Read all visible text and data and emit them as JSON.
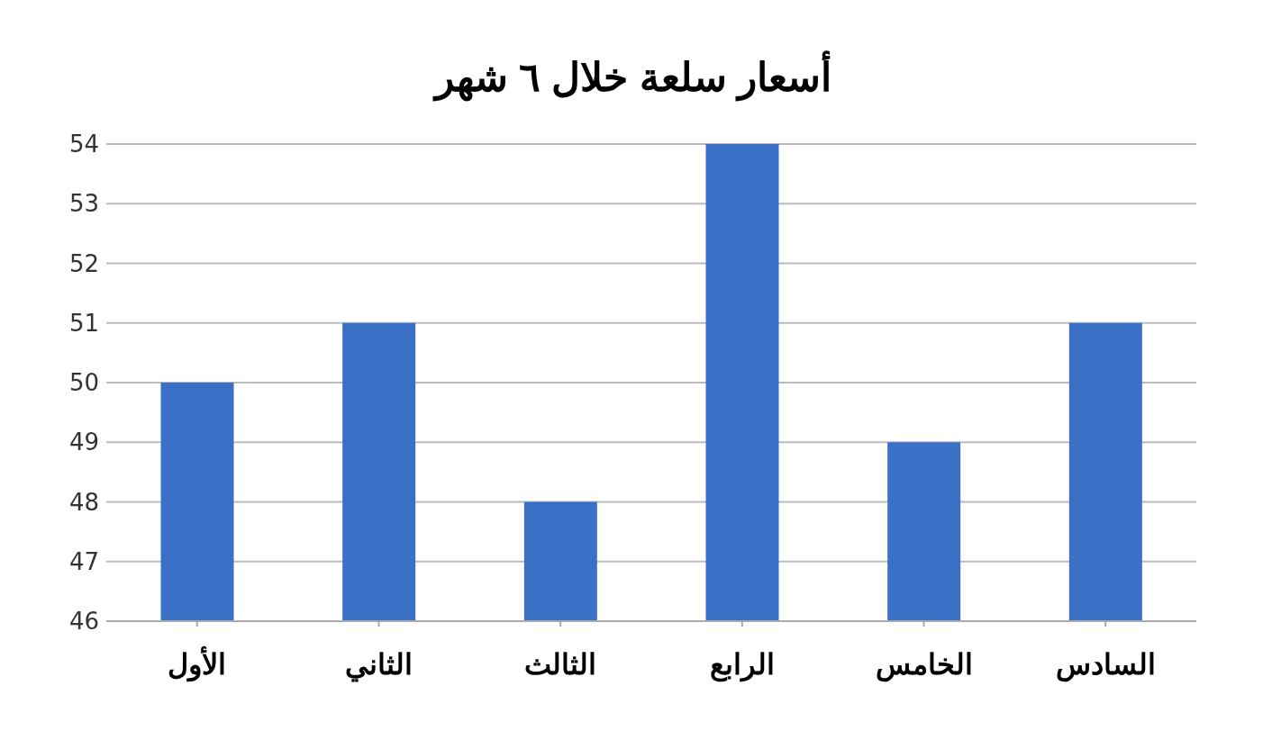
{
  "chart_data": {
    "type": "bar",
    "title": "أسعار سلعة خلال ٦ شهر",
    "categories": [
      "الأول",
      "الثاني",
      "الثالث",
      "الرابع",
      "الخامس",
      "السادس"
    ],
    "values": [
      50,
      51,
      48,
      54,
      49,
      51
    ],
    "color": "#3a70c6",
    "ylim": [
      46,
      54
    ],
    "yticks": [
      46,
      47,
      48,
      49,
      50,
      51,
      52,
      53,
      54
    ],
    "grid": "y"
  }
}
